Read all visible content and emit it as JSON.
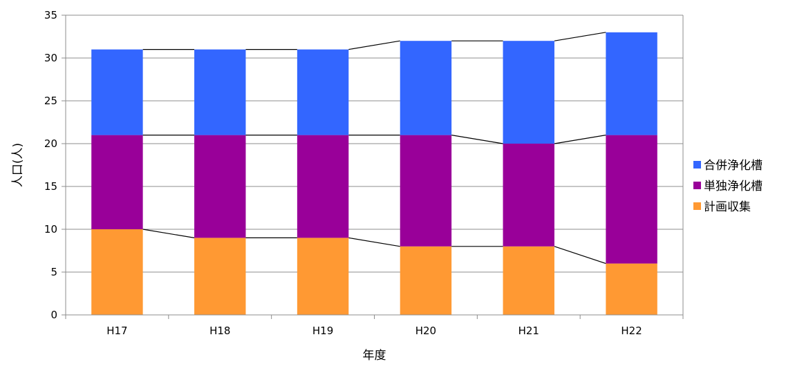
{
  "chart_data": {
    "type": "bar",
    "stacked": true,
    "categories": [
      "H17",
      "H18",
      "H19",
      "H20",
      "H21",
      "H22"
    ],
    "series": [
      {
        "name": "計画収集",
        "values": [
          10,
          9,
          9,
          8,
          8,
          6
        ],
        "color": "#ff9933"
      },
      {
        "name": "単独浄化槽",
        "values": [
          11,
          12,
          12,
          13,
          12,
          15
        ],
        "color": "#990099"
      },
      {
        "name": "合併浄化槽",
        "values": [
          10,
          10,
          10,
          11,
          12,
          12
        ],
        "color": "#3366ff"
      }
    ],
    "legend_order": [
      "合併浄化槽",
      "単独浄化槽",
      "計画収集"
    ],
    "ylim": [
      0,
      35
    ],
    "yticks": [
      0,
      5,
      10,
      15,
      20,
      25,
      30,
      35
    ],
    "xlabel": "年度",
    "ylabel": "人口(人)",
    "title": "",
    "grid": true,
    "series_lines": true,
    "legend_position": "right"
  }
}
